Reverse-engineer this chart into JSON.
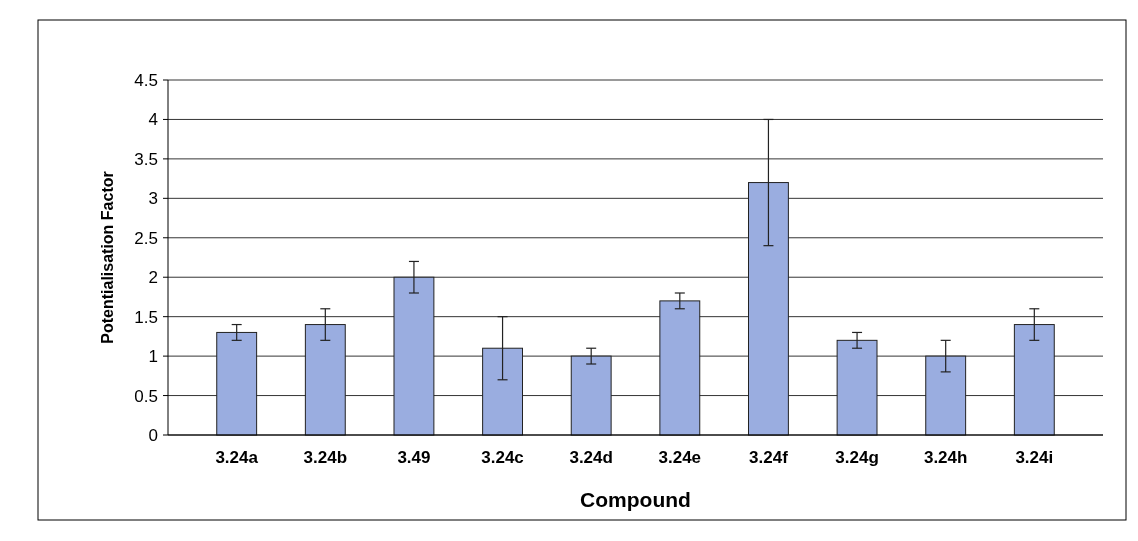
{
  "chart_data": {
    "type": "bar",
    "xlabel": "Compound",
    "ylabel": "Potentialisation Factor",
    "categories": [
      "3.24a",
      "3.24b",
      "3.49",
      "3.24c",
      "3.24d",
      "3.24e",
      "3.24f",
      "3.24g",
      "3.24h",
      "3.24i"
    ],
    "values": [
      1.3,
      1.4,
      2.0,
      1.1,
      1.0,
      1.7,
      3.2,
      1.2,
      1.0,
      1.4
    ],
    "errors": [
      0.1,
      0.2,
      0.2,
      0.4,
      0.1,
      0.1,
      0.8,
      0.1,
      0.2,
      0.2
    ],
    "color": "#9aade0",
    "ylim": [
      0,
      4.5
    ],
    "yticks": [
      0,
      0.5,
      1,
      1.5,
      2,
      2.5,
      3,
      3.5,
      4,
      4.5
    ],
    "grid": "y"
  }
}
